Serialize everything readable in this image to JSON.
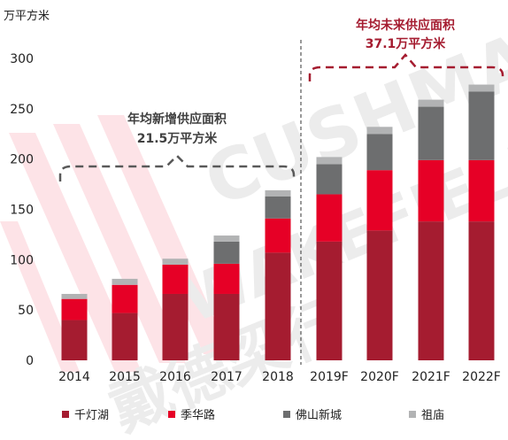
{
  "chart_data": {
    "type": "bar",
    "stacked": true,
    "title": "",
    "xlabel": "",
    "ylabel": "万平方米",
    "ylim": [
      0,
      300
    ],
    "yticks": [
      0,
      50,
      100,
      150,
      200,
      250,
      300
    ],
    "grid": false,
    "legend_position": "bottom",
    "categories": [
      "2014",
      "2015",
      "2016",
      "2017",
      "2018",
      "2019F",
      "2020F",
      "2021F",
      "2022F"
    ],
    "series": [
      {
        "name": "千灯湖",
        "color": "#a51c30",
        "values": [
          40,
          47,
          66,
          66,
          107,
          118,
          129,
          138,
          138
        ]
      },
      {
        "name": "季华路",
        "color": "#e60026",
        "values": [
          21,
          28,
          29,
          30,
          34,
          47,
          60,
          61,
          61
        ]
      },
      {
        "name": "佛山新城",
        "color": "#6d6e6f",
        "values": [
          0,
          0,
          0,
          22,
          22,
          30,
          36,
          53,
          68
        ]
      },
      {
        "name": "祖庙",
        "color": "#b2b3b4",
        "values": [
          5,
          6,
          6,
          6,
          6,
          7,
          7,
          7,
          7
        ]
      }
    ],
    "annotations": [
      {
        "line1": "年均新增供应面积",
        "line2": "21.5万平方米",
        "color": "#404040"
      },
      {
        "line1": "年均未来供应面积",
        "line2": "37.1万平方米",
        "color": "#a51c30"
      }
    ],
    "watermark": [
      "CUSHMAN",
      "WAKEFIELD",
      "戴德梁行"
    ]
  }
}
